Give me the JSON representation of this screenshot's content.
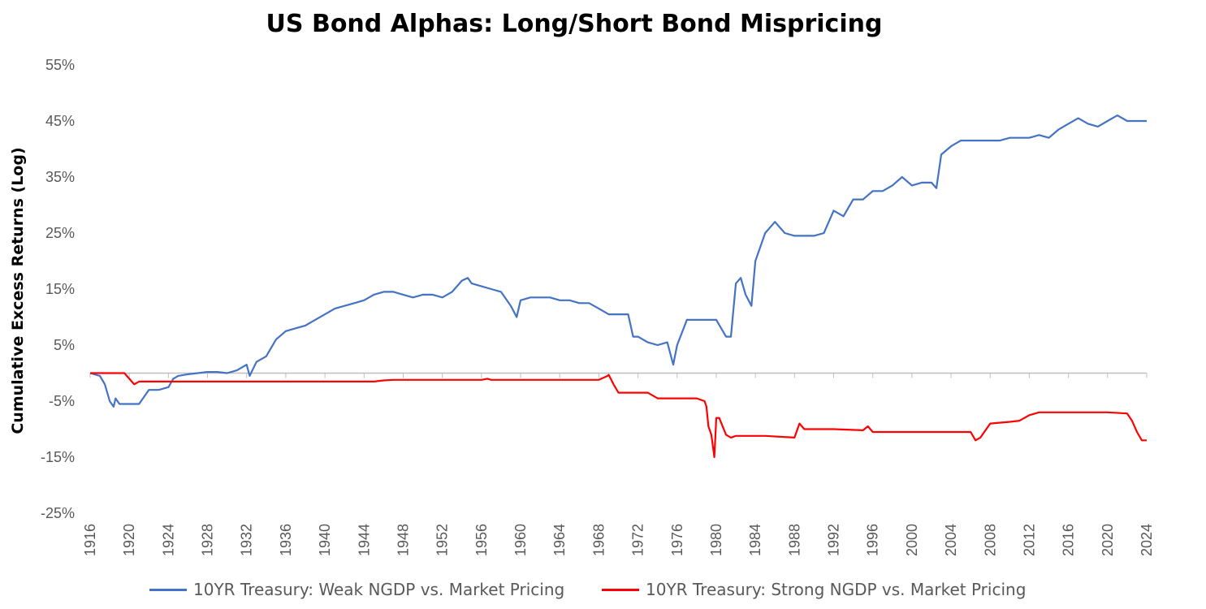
{
  "chart_data": {
    "type": "line",
    "title": "US Bond Alphas: Long/Short Bond Mispricing",
    "ylabel": "Cumulative Excess Returns (Log)",
    "xlabel": "",
    "ylim": [
      -25,
      55
    ],
    "yticks": [
      55,
      45,
      35,
      25,
      15,
      5,
      -5,
      -15,
      -25
    ],
    "ytick_labels": [
      "55%",
      "45%",
      "35%",
      "25%",
      "15%",
      "5%",
      "-5%",
      "-15%",
      "-25%"
    ],
    "xlim": [
      1916,
      2024
    ],
    "xticks": [
      1916,
      1920,
      1924,
      1928,
      1932,
      1936,
      1940,
      1944,
      1948,
      1952,
      1956,
      1960,
      1964,
      1968,
      1972,
      1976,
      1980,
      1984,
      1988,
      1992,
      1996,
      2000,
      2004,
      2008,
      2012,
      2016,
      2020,
      2024
    ],
    "xtick_labels": [
      "1916",
      "1920",
      "1924",
      "1928",
      "1932",
      "1936",
      "1940",
      "1944",
      "1948",
      "1952",
      "1956",
      "1960",
      "1964",
      "1968",
      "1972",
      "1976",
      "1980",
      "1984",
      "1988",
      "1992",
      "1996",
      "2000",
      "2004",
      "2008",
      "2012",
      "2016",
      "2020",
      "2024"
    ],
    "grid": false,
    "legend_position": "bottom",
    "series": [
      {
        "name": "10YR Treasury: Weak NGDP vs. Market Pricing",
        "color": "#4472C4",
        "x": [
          1916,
          1917,
          1917.5,
          1918,
          1918.4,
          1918.6,
          1919,
          1920,
          1921,
          1922,
          1922.5,
          1923,
          1924,
          1924.5,
          1925,
          1926,
          1927,
          1928,
          1929,
          1930,
          1931,
          1932,
          1932.3,
          1933,
          1934,
          1935,
          1936,
          1937,
          1938,
          1939,
          1940,
          1941,
          1942,
          1943,
          1944,
          1945,
          1946,
          1947,
          1948,
          1949,
          1950,
          1951,
          1952,
          1953,
          1954,
          1954.6,
          1955,
          1956,
          1957,
          1958,
          1959,
          1959.6,
          1960,
          1961,
          1962,
          1963,
          1964,
          1965,
          1966,
          1967,
          1968,
          1969,
          1970,
          1971,
          1971.5,
          1972,
          1973,
          1974,
          1975,
          1975.6,
          1976,
          1977,
          1978,
          1979,
          1980,
          1981,
          1981.5,
          1982,
          1982.5,
          1983,
          1983.6,
          1984,
          1985,
          1986,
          1987,
          1988,
          1989,
          1990,
          1991,
          1992,
          1993,
          1994,
          1995,
          1996,
          1997,
          1998,
          1999,
          2000,
          2001,
          2002,
          2002.5,
          2003,
          2004,
          2005,
          2006,
          2007,
          2008,
          2009,
          2010,
          2011,
          2012,
          2013,
          2014,
          2015,
          2016,
          2017,
          2018,
          2019,
          2020,
          2021,
          2022,
          2023,
          2024
        ],
        "values": [
          0,
          -0.5,
          -2,
          -5,
          -6,
          -4.5,
          -5.5,
          -5.5,
          -5.5,
          -3,
          -3,
          -3,
          -2.5,
          -1,
          -0.5,
          -0.2,
          0,
          0.2,
          0.2,
          0,
          0.5,
          1.5,
          -0.5,
          2,
          3,
          6,
          7.5,
          8,
          8.5,
          9.5,
          10.5,
          11.5,
          12,
          12.5,
          13,
          14,
          14.5,
          14.5,
          14,
          13.5,
          14,
          14,
          13.5,
          14.5,
          16.5,
          17,
          16,
          15.5,
          15,
          14.5,
          12,
          10,
          13,
          13.5,
          13.5,
          13.5,
          13,
          13,
          12.5,
          12.5,
          11.5,
          10.5,
          10.5,
          10.5,
          6.5,
          6.5,
          5.5,
          5,
          5.5,
          1.5,
          5,
          9.5,
          9.5,
          9.5,
          9.5,
          6.5,
          6.5,
          16,
          17,
          14,
          12,
          20,
          25,
          27,
          25,
          24.5,
          24.5,
          24.5,
          25,
          29,
          28,
          31,
          31,
          32.5,
          32.5,
          33.5,
          35,
          33.5,
          34,
          34,
          33,
          39,
          40.5,
          41.5,
          41.5,
          41.5,
          41.5,
          41.5,
          42,
          42,
          42,
          42.5,
          42,
          43.5,
          44.5,
          45.5,
          44.5,
          44,
          45,
          46,
          45,
          45,
          45
        ]
      },
      {
        "name": "10YR Treasury: Strong NGDP vs. Market Pricing",
        "color": "#FF0000",
        "x": [
          1916,
          1918,
          1919.5,
          1920,
          1920.5,
          1921,
          1924,
          1930,
          1940,
          1945,
          1946,
          1947,
          1948,
          1950,
          1956,
          1956.6,
          1957,
          1960,
          1968,
          1968.9,
          1969,
          1969.5,
          1970,
          1971,
          1972,
          1973,
          1974,
          1975,
          1976,
          1977,
          1978,
          1978.8,
          1979,
          1979.2,
          1979.5,
          1979.8,
          1980,
          1980.3,
          1981,
          1981.5,
          1982,
          1985,
          1988,
          1988.5,
          1989,
          1990,
          1992,
          1995,
          1995.5,
          1996,
          2000,
          2006,
          2006.5,
          2007,
          2008,
          2010,
          2011,
          2012,
          2013,
          2016,
          2020,
          2022,
          2022.5,
          2023,
          2023.5,
          2024
        ],
        "values": [
          0,
          0,
          0,
          -1,
          -2,
          -1.5,
          -1.5,
          -1.5,
          -1.5,
          -1.5,
          -1.3,
          -1.2,
          -1.2,
          -1.2,
          -1.2,
          -1.0,
          -1.2,
          -1.2,
          -1.2,
          -0.5,
          -0.3,
          -2,
          -3.5,
          -3.5,
          -3.5,
          -3.5,
          -4.5,
          -4.5,
          -4.5,
          -4.5,
          -4.5,
          -5,
          -6,
          -9.5,
          -11,
          -15,
          -8,
          -8,
          -11,
          -11.5,
          -11.2,
          -11.2,
          -11.5,
          -9,
          -10,
          -10,
          -10,
          -10.2,
          -9.5,
          -10.5,
          -10.5,
          -10.5,
          -12,
          -11.5,
          -9,
          -8.7,
          -8.5,
          -7.5,
          -7,
          -7,
          -7,
          -7.2,
          -8.5,
          -10.5,
          -12,
          -12
        ]
      }
    ]
  }
}
